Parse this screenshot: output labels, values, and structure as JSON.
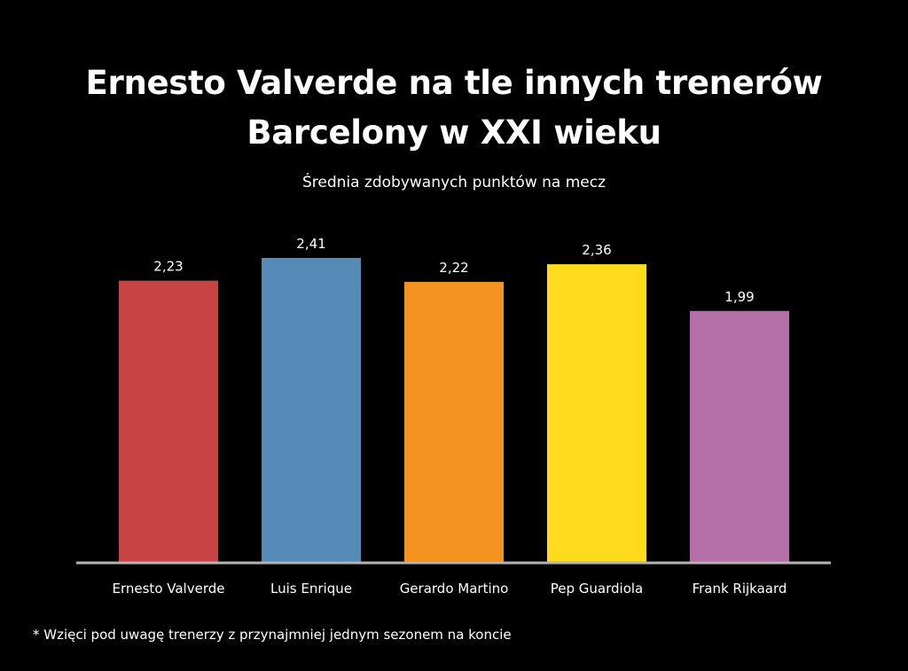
{
  "title_line1": "Ernesto Valverde na tle innych trenerów",
  "title_line2": "Barcelony w XXI wieku",
  "subtitle": "Średnia zdobywanych punktów na mecz",
  "footnote": "* Wzięci pod uwagę trenerzy z przynajmniej jednym sezonem na koncie",
  "chart_data": {
    "type": "bar",
    "title": "Ernesto Valverde na tle innych trenerów Barcelony w XXI wieku",
    "subtitle": "Średnia zdobywanych punktów na mecz",
    "categories": [
      "Ernesto Valverde",
      "Luis Enrique",
      "Gerardo Martino",
      "Pep Guardiola",
      "Frank Rijkaard"
    ],
    "values": [
      2.23,
      2.41,
      2.22,
      2.36,
      1.99
    ],
    "value_labels": [
      "2,23",
      "2,41",
      "2,22",
      "2,36",
      "1,99"
    ],
    "colors": [
      "#c84444",
      "#568bb8",
      "#f59320",
      "#fedb1b",
      "#b46fa9"
    ],
    "ylim": [
      0,
      2.41
    ],
    "grid": false,
    "legend": "none"
  },
  "colors": {
    "background": "#000000",
    "text": "#ffffff",
    "axis": "#b3b3b3"
  }
}
